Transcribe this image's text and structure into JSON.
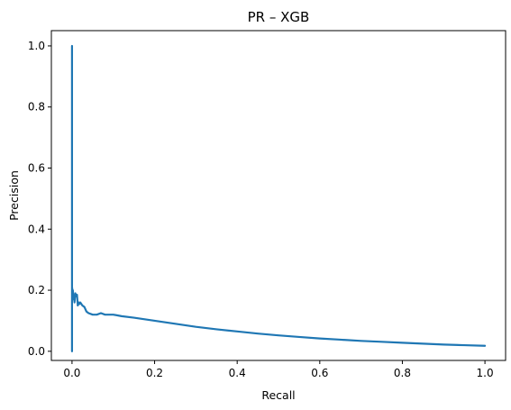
{
  "chart_data": {
    "type": "line",
    "title": "PR – XGB",
    "xlabel": "Recall",
    "ylabel": "Precision",
    "xlim": [
      -0.05,
      1.05
    ],
    "ylim": [
      -0.03,
      1.05
    ],
    "xticks": [
      0.0,
      0.2,
      0.4,
      0.6,
      0.8,
      1.0
    ],
    "xtick_labels": [
      "0.0",
      "0.2",
      "0.4",
      "0.6",
      "0.8",
      "1.0"
    ],
    "yticks": [
      0.0,
      0.2,
      0.4,
      0.6,
      0.8,
      1.0
    ],
    "ytick_labels": [
      "0.0",
      "0.2",
      "0.4",
      "0.6",
      "0.8",
      "1.0"
    ],
    "grid": false,
    "legend": "none",
    "series": [
      {
        "color": "#1f77b4",
        "x": [
          0.0,
          0.0,
          0.0,
          0.0,
          0.0,
          0.0,
          0.0,
          0.0,
          0.002,
          0.002,
          0.004,
          0.005,
          0.006,
          0.008,
          0.01,
          0.012,
          0.014,
          0.016,
          0.018,
          0.02,
          0.025,
          0.03,
          0.035,
          0.04,
          0.05,
          0.06,
          0.07,
          0.08,
          0.1,
          0.12,
          0.15,
          0.2,
          0.25,
          0.3,
          0.35,
          0.4,
          0.45,
          0.5,
          0.55,
          0.6,
          0.65,
          0.7,
          0.75,
          0.8,
          0.85,
          0.9,
          0.95,
          1.0
        ],
        "y": [
          1.0,
          0.5,
          0.2,
          0.0,
          0.12,
          0.05,
          0.18,
          0.21,
          0.19,
          0.2,
          0.17,
          0.18,
          0.16,
          0.19,
          0.18,
          0.185,
          0.15,
          0.16,
          0.155,
          0.16,
          0.15,
          0.145,
          0.13,
          0.125,
          0.12,
          0.12,
          0.125,
          0.12,
          0.12,
          0.115,
          0.11,
          0.1,
          0.09,
          0.08,
          0.072,
          0.065,
          0.058,
          0.052,
          0.047,
          0.042,
          0.038,
          0.034,
          0.031,
          0.028,
          0.025,
          0.022,
          0.02,
          0.018
        ]
      }
    ]
  }
}
